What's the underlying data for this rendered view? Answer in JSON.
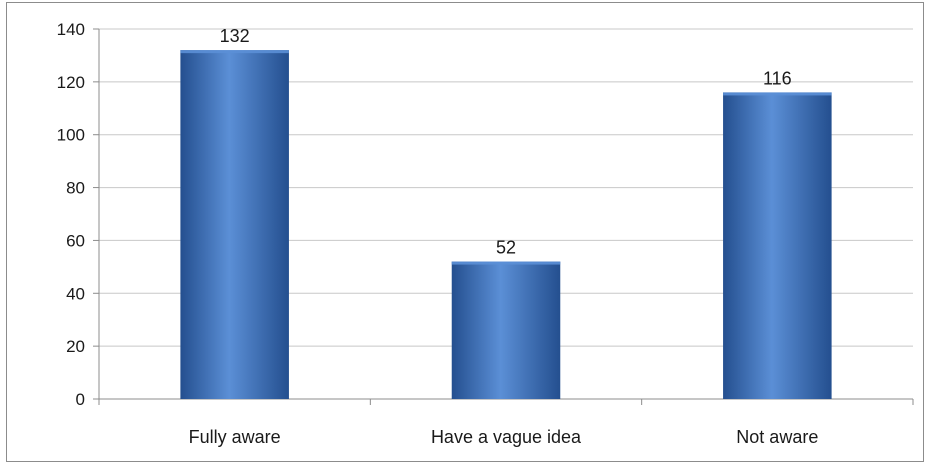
{
  "chart_data": {
    "type": "bar",
    "categories": [
      "Fully aware",
      "Have a vague idea",
      "Not aware"
    ],
    "values": [
      132,
      52,
      116
    ],
    "data_labels": [
      "132",
      "52",
      "116"
    ],
    "title": "",
    "xlabel": "",
    "ylabel": "",
    "ylim": [
      0,
      140
    ],
    "yticks": [
      0,
      20,
      40,
      60,
      80,
      100,
      120,
      140
    ],
    "ytick_labels": [
      "0",
      "20",
      "40",
      "60",
      "80",
      "100",
      "120",
      "140"
    ],
    "grid": true,
    "legend": "none",
    "colors": {
      "bar_light": "#5b8fd6",
      "bar_mid": "#3f74c0",
      "bar_dark": "#244f8f",
      "gridline": "#c8c8c8",
      "axis": "#8c8c8c"
    }
  }
}
